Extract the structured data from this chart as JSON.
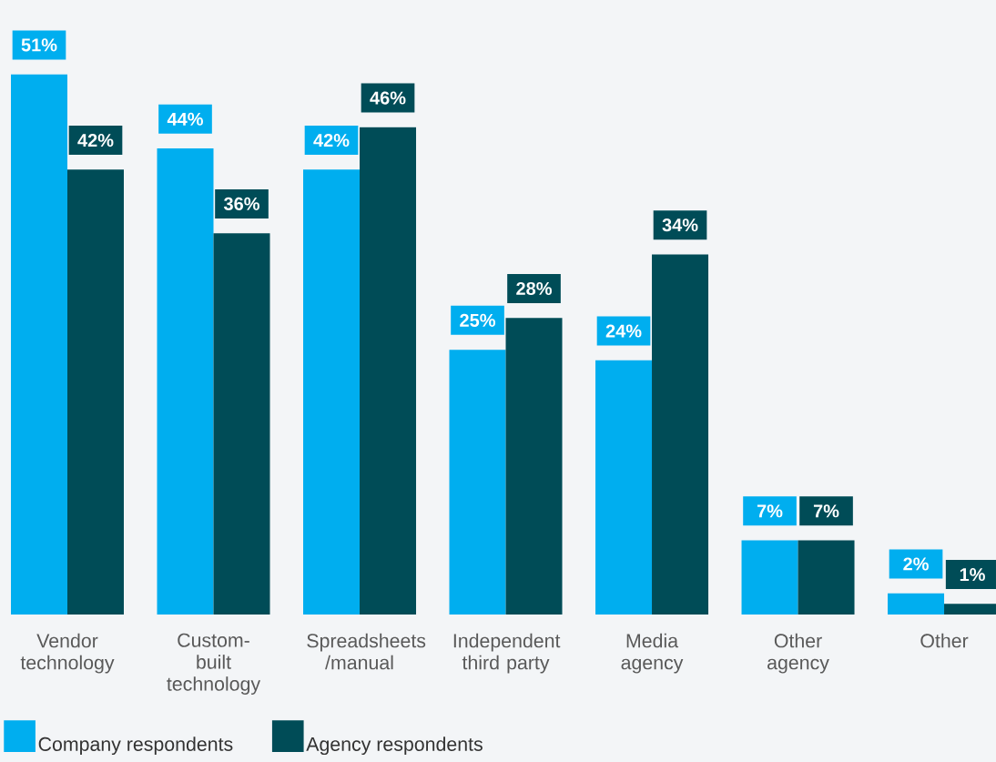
{
  "chart_data": {
    "type": "bar",
    "categories": [
      "Vendor technology",
      "Custom-built technology",
      "Spreadsheets /manual",
      "Independent third party",
      "Media agency",
      "Other agency",
      "Other"
    ],
    "series": [
      {
        "name": "Company respondents",
        "color": "#00aeef",
        "values": [
          51,
          44,
          42,
          25,
          24,
          7,
          2
        ],
        "value_labels": [
          "51%",
          "44%",
          "42%",
          "25%",
          "24%",
          "7%",
          "2%"
        ]
      },
      {
        "name": "Agency respondents",
        "color": "#004c57",
        "values": [
          42,
          36,
          46,
          28,
          34,
          7,
          1
        ],
        "value_labels": [
          "42%",
          "36%",
          "46%",
          "28%",
          "34%",
          "7%",
          "1%"
        ]
      }
    ],
    "legend": "bottom left"
  }
}
